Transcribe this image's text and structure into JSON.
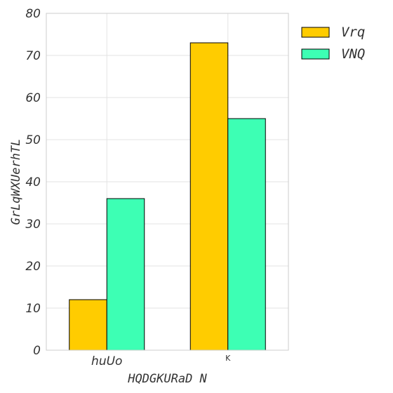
{
  "chart_data": {
    "type": "bar",
    "categories": [
      "huUo",
      "K"
    ],
    "series": [
      {
        "name": "Vrq",
        "values": [
          12,
          73
        ],
        "color": "#ffcc00"
      },
      {
        "name": "VNQ",
        "values": [
          36,
          55
        ],
        "color": "#3dffb4"
      }
    ],
    "xlabel": "HQDGKURaD N",
    "ylabel": "GrLqWXUerhTL",
    "ylim": [
      0,
      80
    ],
    "yticks": [
      0,
      10,
      20,
      30,
      40,
      50,
      60,
      70,
      80
    ],
    "grid": true,
    "legend_position": "outside-top-right"
  }
}
